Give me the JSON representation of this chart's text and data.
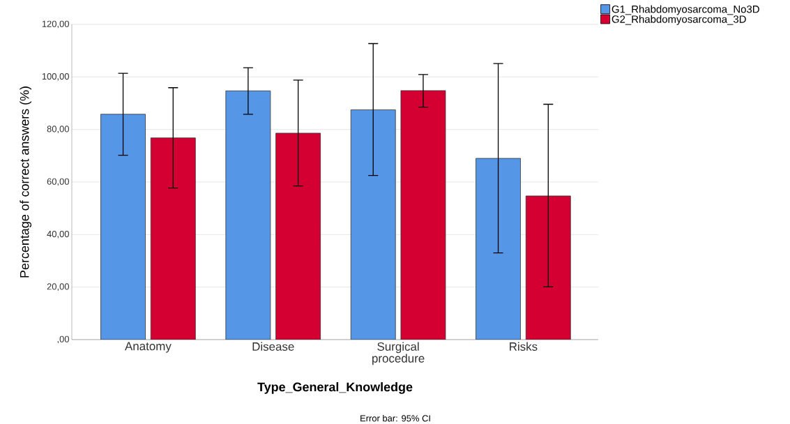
{
  "chart_data": {
    "type": "bar",
    "xlabel": "Type_General_Knowledge",
    "ylabel": "Percentage of correct answers (%)",
    "categories": [
      "Anatomy",
      "Disease",
      "Surgical procedure",
      "Risks"
    ],
    "series": [
      {
        "name": "G1_Rhabdomyosarcoma_No3D",
        "color": "#5596e6",
        "values": [
          85.8,
          94.7,
          87.5,
          69.0
        ],
        "errors": [
          [
            70.2,
            101.4
          ],
          [
            85.8,
            103.5
          ],
          [
            62.5,
            112.7
          ],
          [
            33.0,
            105.1
          ]
        ]
      },
      {
        "name": "G2_Rhabdomyosarcoma_3D",
        "color": "#d50032",
        "values": [
          76.8,
          78.6,
          94.8,
          54.7
        ],
        "errors": [
          [
            57.7,
            95.9
          ],
          [
            58.5,
            98.8
          ],
          [
            88.5,
            100.9
          ],
          [
            20.1,
            89.6
          ]
        ]
      }
    ],
    "ylim": [
      0,
      120
    ],
    "yticks": [
      {
        "value": 0,
        "label": ",00"
      },
      {
        "value": 20,
        "label": "20,00"
      },
      {
        "value": 40,
        "label": "40,00"
      },
      {
        "value": 60,
        "label": "60,00"
      },
      {
        "value": 80,
        "label": "80,00"
      },
      {
        "value": 100,
        "label": "100,00"
      },
      {
        "value": 120,
        "label": "120,00"
      }
    ],
    "grid": "y",
    "legend": "top right",
    "annotations": [
      "Error bar: 95% CI"
    ]
  }
}
